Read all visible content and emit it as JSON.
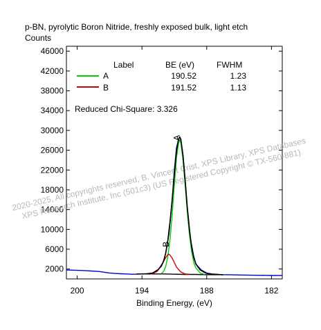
{
  "chart_data": {
    "type": "line",
    "title": "p-BN, pyrolytic Boron Nitride, freshly exposed bulk, light etch",
    "ylabel": "Counts",
    "xlabel": "Binding Energy, (eV)",
    "xlim": [
      201,
      181
    ],
    "ylim": [
      0,
      47000
    ],
    "x_ticks": [
      200,
      194,
      188,
      182
    ],
    "y_ticks": [
      2000,
      6000,
      10000,
      14000,
      18000,
      22000,
      26000,
      30000,
      34000,
      38000,
      42000,
      46000
    ],
    "legend": {
      "headers": [
        "Label",
        "BE (eV)",
        "FWHM"
      ],
      "rows": [
        {
          "label": "A",
          "be": "190.52",
          "fwhm": "1.23",
          "color": "#00cc00"
        },
        {
          "label": "B",
          "be": "191.52",
          "fwhm": "1.13",
          "color": "#cc0000"
        }
      ]
    },
    "chi_square": "Reduced Chi-Square: 3.326",
    "peak_labels": [
      {
        "text": "A",
        "x": 190.52,
        "y": 28500
      },
      {
        "text": "B",
        "x": 191.52,
        "y": 7000
      }
    ],
    "watermark": [
      "2020-2025,  All copyrights reserved,  B. Vincent Crist,  XPS Library, XPS Databases",
      "XPS Research Institute, Inc (501c3)   (US Registered Copyright © TX-560-881)"
    ],
    "series": [
      {
        "name": "raw",
        "color": "#0000cc",
        "x": [
          201,
          199.5,
          198,
          197.5,
          197,
          196.5,
          196,
          195.5,
          195,
          194.5,
          194,
          193.5,
          193,
          192.5,
          192,
          191.8,
          191.5,
          191.2,
          191.0,
          190.8,
          190.6,
          190.5,
          190.4,
          190.2,
          190.0,
          189.8,
          189.5,
          189.2,
          189,
          188.5,
          188,
          187.5,
          187,
          186.5,
          186,
          185,
          184,
          183,
          182,
          181
        ],
        "y": [
          1800,
          1700,
          1500,
          1350,
          1200,
          1100,
          1050,
          1000,
          950,
          950,
          1000,
          1050,
          1200,
          1800,
          3500,
          5200,
          9000,
          16000,
          22000,
          26500,
          28300,
          28600,
          28000,
          25000,
          20000,
          14500,
          8000,
          4500,
          3000,
          1800,
          1200,
          1000,
          900,
          850,
          850,
          800,
          750,
          720,
          700,
          680
        ]
      },
      {
        "name": "background",
        "color": "#000000",
        "x": [
          194.5,
          193,
          192,
          191,
          190,
          189,
          188,
          187,
          186.5
        ],
        "y": [
          1000,
          1000,
          1000,
          950,
          900,
          900,
          850,
          850,
          850
        ]
      },
      {
        "name": "A",
        "color": "#00cc00",
        "x": [
          192.2,
          192,
          191.8,
          191.6,
          191.4,
          191.2,
          191.0,
          190.8,
          190.6,
          190.5,
          190.4,
          190.2,
          190.0,
          189.8,
          189.6,
          189.4,
          189.2,
          189,
          188.6,
          188.2
        ],
        "y": [
          1100,
          1500,
          2500,
          4500,
          8000,
          13000,
          19000,
          24500,
          27500,
          28000,
          27500,
          24000,
          19000,
          13500,
          9000,
          5500,
          3300,
          2200,
          1200,
          900
        ]
      },
      {
        "name": "B",
        "color": "#cc0000",
        "x": [
          193.2,
          193,
          192.6,
          192.2,
          192,
          191.8,
          191.6,
          191.52,
          191.4,
          191.2,
          191.0,
          190.8,
          190.4,
          190.0,
          189.6
        ],
        "y": [
          1000,
          1100,
          1500,
          2700,
          3500,
          4300,
          4900,
          5000,
          4800,
          4200,
          3300,
          2400,
          1400,
          1000,
          950
        ]
      },
      {
        "name": "envelope",
        "color": "#000000",
        "x": [
          194,
          193.5,
          193,
          192.5,
          192.2,
          192,
          191.8,
          191.6,
          191.4,
          191.2,
          191.0,
          190.8,
          190.6,
          190.5,
          190.4,
          190.2,
          190.0,
          189.8,
          189.6,
          189.4,
          189.2,
          189,
          188.6,
          188.2,
          188,
          187.5,
          187,
          186.5
        ],
        "y": [
          1000,
          1050,
          1200,
          1900,
          2600,
          3600,
          5200,
          7800,
          11600,
          16000,
          21200,
          25800,
          28300,
          28700,
          28200,
          25000,
          20000,
          14500,
          10000,
          6500,
          4300,
          3000,
          1800,
          1300,
          1100,
          950,
          900,
          850
        ]
      }
    ]
  }
}
